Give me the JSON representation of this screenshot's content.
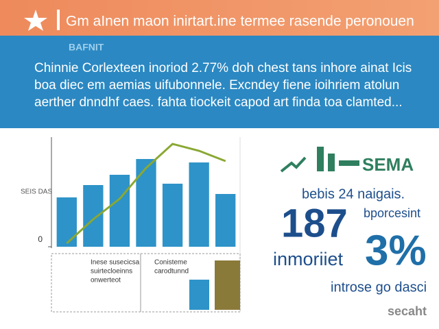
{
  "header": {
    "title": "Gm aInen maon inirtart.ine termee rasende peronouen"
  },
  "banner": {
    "label": "BAFNIT",
    "lines": [
      "Chinnie Corlexteen inoriod 2.77% doh chest tans inhore ainat Icis",
      "boa diec em aemias uifubonnele. Excndey fiene ioihriem atolun",
      "aerther dnndhf caes. fahta tiockeit capod art finda toa clamted..."
    ]
  },
  "chart_data": {
    "type": "bar",
    "y_label": "SEIS DAS",
    "values": [
      72,
      90,
      105,
      128,
      92,
      123,
      77
    ],
    "color": "#2e93c8",
    "trend": {
      "color": "#8aa832",
      "values": [
        5,
        40,
        70,
        115,
        150,
        140,
        125
      ]
    },
    "ylim": [
      0,
      160
    ],
    "yticks": [
      0
    ],
    "notes": [
      [
        "Inese susecicsa",
        "suirtecloeinns",
        "onwerteot"
      ],
      [
        "Conisteme",
        "carodtunnd"
      ]
    ]
  },
  "stats": {
    "heading": "SEMA",
    "caption": "bebis 24 naigais.",
    "big_number": "187",
    "big_number_label": "inmoriiet",
    "percent_label": "bporcesint",
    "percent": "3%",
    "percent_caption": "introse go dasci",
    "footer": "secaht"
  }
}
